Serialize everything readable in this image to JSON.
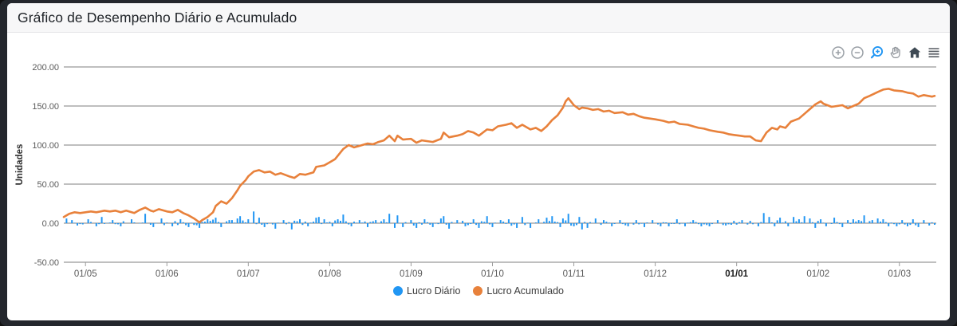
{
  "window": {
    "title": "Gráfico de Desempenho Diário e Acumulado"
  },
  "toolbar": {
    "buttons": [
      {
        "name": "zoom-in-icon",
        "color": "#9aa0a6",
        "active": false
      },
      {
        "name": "zoom-out-icon",
        "color": "#9aa0a6",
        "active": false
      },
      {
        "name": "zoom-select-icon",
        "color": "#2196F3",
        "active": true
      },
      {
        "name": "pan-hand-icon",
        "color": "#8d9298",
        "active": false
      },
      {
        "name": "home-reset-icon",
        "color": "#3e4a54",
        "active": false
      },
      {
        "name": "menu-icon",
        "color": "#565b62",
        "active": false
      }
    ]
  },
  "legend": {
    "items": [
      {
        "label": "Lucro Diário",
        "color": "#2196F3"
      },
      {
        "label": "Lucro Acumulado",
        "color": "#E8813B"
      }
    ]
  },
  "chart_data": {
    "type": "combo",
    "ylabel": "Unidades",
    "ylim": [
      -50,
      200
    ],
    "grid": true,
    "grid_color": "#7f7f7f",
    "legend_position": "bottom",
    "y_ticks": [
      {
        "value": 200,
        "label": "200.00"
      },
      {
        "value": 150,
        "label": "150.00"
      },
      {
        "value": 100,
        "label": "100.00"
      },
      {
        "value": 50,
        "label": "50.00"
      },
      {
        "value": 0,
        "label": "0.00"
      },
      {
        "value": -50,
        "label": "-50.00"
      }
    ],
    "x_ticks": [
      {
        "label": "01/05",
        "day": 8,
        "bold": false
      },
      {
        "label": "01/06",
        "day": 38,
        "bold": false
      },
      {
        "label": "01/07",
        "day": 68,
        "bold": false
      },
      {
        "label": "01/08",
        "day": 98,
        "bold": false
      },
      {
        "label": "01/09",
        "day": 128,
        "bold": false
      },
      {
        "label": "01/10",
        "day": 158,
        "bold": false
      },
      {
        "label": "01/11",
        "day": 188,
        "bold": false
      },
      {
        "label": "01/12",
        "day": 218,
        "bold": false
      },
      {
        "label": "01/01",
        "day": 248,
        "bold": true
      },
      {
        "label": "01/02",
        "day": 278,
        "bold": false
      },
      {
        "label": "01/03",
        "day": 308,
        "bold": false
      }
    ],
    "total_days": 321,
    "series": [
      {
        "name": "Lucro Diário",
        "type": "bar",
        "color": "#2196F3"
      },
      {
        "name": "Lucro Acumulado",
        "type": "line",
        "color": "#E8813B"
      }
    ],
    "cumulative_keypoints": [
      [
        0,
        8
      ],
      [
        2,
        12
      ],
      [
        4,
        14
      ],
      [
        6,
        13
      ],
      [
        8,
        14
      ],
      [
        10,
        15
      ],
      [
        12,
        14
      ],
      [
        15,
        16
      ],
      [
        17,
        15
      ],
      [
        19,
        16
      ],
      [
        21,
        14
      ],
      [
        23,
        16
      ],
      [
        26,
        13
      ],
      [
        28,
        17
      ],
      [
        30,
        20
      ],
      [
        32,
        16
      ],
      [
        33,
        15
      ],
      [
        35,
        18
      ],
      [
        38,
        15
      ],
      [
        40,
        14
      ],
      [
        42,
        17
      ],
      [
        44,
        13
      ],
      [
        46,
        10
      ],
      [
        48,
        6
      ],
      [
        50,
        1
      ],
      [
        51,
        4
      ],
      [
        53,
        8
      ],
      [
        55,
        14
      ],
      [
        56,
        22
      ],
      [
        58,
        28
      ],
      [
        60,
        25
      ],
      [
        62,
        32
      ],
      [
        64,
        42
      ],
      [
        65,
        48
      ],
      [
        67,
        55
      ],
      [
        68,
        60
      ],
      [
        70,
        66
      ],
      [
        72,
        68
      ],
      [
        74,
        65
      ],
      [
        76,
        66
      ],
      [
        78,
        62
      ],
      [
        80,
        64
      ],
      [
        83,
        60
      ],
      [
        85,
        58
      ],
      [
        87,
        63
      ],
      [
        89,
        62
      ],
      [
        92,
        65
      ],
      [
        93,
        72
      ],
      [
        96,
        74
      ],
      [
        98,
        78
      ],
      [
        100,
        82
      ],
      [
        103,
        95
      ],
      [
        105,
        100
      ],
      [
        107,
        97
      ],
      [
        109,
        99
      ],
      [
        112,
        102
      ],
      [
        114,
        101
      ],
      [
        116,
        104
      ],
      [
        118,
        106
      ],
      [
        120,
        112
      ],
      [
        122,
        105
      ],
      [
        123,
        112
      ],
      [
        125,
        107
      ],
      [
        128,
        108
      ],
      [
        130,
        103
      ],
      [
        132,
        106
      ],
      [
        134,
        105
      ],
      [
        136,
        104
      ],
      [
        139,
        108
      ],
      [
        140,
        116
      ],
      [
        142,
        110
      ],
      [
        145,
        112
      ],
      [
        147,
        114
      ],
      [
        149,
        118
      ],
      [
        151,
        116
      ],
      [
        153,
        112
      ],
      [
        156,
        120
      ],
      [
        158,
        119
      ],
      [
        160,
        124
      ],
      [
        163,
        126
      ],
      [
        165,
        128
      ],
      [
        167,
        122
      ],
      [
        169,
        126
      ],
      [
        172,
        120
      ],
      [
        174,
        122
      ],
      [
        176,
        118
      ],
      [
        178,
        124
      ],
      [
        180,
        132
      ],
      [
        182,
        138
      ],
      [
        184,
        148
      ],
      [
        185,
        156
      ],
      [
        186,
        160
      ],
      [
        188,
        151
      ],
      [
        190,
        146
      ],
      [
        191,
        148
      ],
      [
        193,
        147
      ],
      [
        195,
        145
      ],
      [
        197,
        146
      ],
      [
        199,
        143
      ],
      [
        201,
        144
      ],
      [
        203,
        141
      ],
      [
        206,
        142
      ],
      [
        208,
        139
      ],
      [
        210,
        140
      ],
      [
        212,
        137
      ],
      [
        214,
        135
      ],
      [
        216,
        134
      ],
      [
        218,
        133
      ],
      [
        221,
        131
      ],
      [
        223,
        129
      ],
      [
        225,
        130
      ],
      [
        227,
        127
      ],
      [
        230,
        126
      ],
      [
        232,
        124
      ],
      [
        234,
        122
      ],
      [
        236,
        121
      ],
      [
        238,
        119
      ],
      [
        241,
        117
      ],
      [
        243,
        116
      ],
      [
        245,
        114
      ],
      [
        247,
        113
      ],
      [
        249,
        112
      ],
      [
        251,
        111
      ],
      [
        253,
        111
      ],
      [
        255,
        106
      ],
      [
        257,
        105
      ],
      [
        259,
        116
      ],
      [
        261,
        122
      ],
      [
        263,
        120
      ],
      [
        264,
        124
      ],
      [
        266,
        122
      ],
      [
        268,
        130
      ],
      [
        271,
        134
      ],
      [
        273,
        140
      ],
      [
        275,
        146
      ],
      [
        277,
        152
      ],
      [
        279,
        156
      ],
      [
        280,
        153
      ],
      [
        283,
        149
      ],
      [
        285,
        150
      ],
      [
        287,
        151
      ],
      [
        289,
        147
      ],
      [
        291,
        150
      ],
      [
        293,
        153
      ],
      [
        295,
        160
      ],
      [
        297,
        163
      ],
      [
        300,
        168
      ],
      [
        302,
        171
      ],
      [
        304,
        172
      ],
      [
        306,
        170
      ],
      [
        309,
        169
      ],
      [
        311,
        167
      ],
      [
        313,
        166
      ],
      [
        315,
        162
      ],
      [
        317,
        164
      ],
      [
        320,
        162
      ],
      [
        321,
        163
      ]
    ],
    "daily_spikes": [
      [
        1,
        6
      ],
      [
        3,
        4
      ],
      [
        5,
        -3
      ],
      [
        9,
        5
      ],
      [
        12,
        -4
      ],
      [
        14,
        8
      ],
      [
        18,
        4
      ],
      [
        21,
        -4
      ],
      [
        25,
        5
      ],
      [
        30,
        12
      ],
      [
        33,
        -5
      ],
      [
        36,
        6
      ],
      [
        40,
        -4
      ],
      [
        43,
        5
      ],
      [
        46,
        -5
      ],
      [
        50,
        -6
      ],
      [
        53,
        5
      ],
      [
        56,
        7
      ],
      [
        58,
        -5
      ],
      [
        61,
        4
      ],
      [
        64,
        6
      ],
      [
        65,
        9
      ],
      [
        68,
        5
      ],
      [
        70,
        15
      ],
      [
        72,
        7
      ],
      [
        74,
        -5
      ],
      [
        78,
        -7
      ],
      [
        81,
        4
      ],
      [
        84,
        -8
      ],
      [
        87,
        5
      ],
      [
        90,
        -4
      ],
      [
        93,
        7
      ],
      [
        94,
        8
      ],
      [
        96,
        5
      ],
      [
        99,
        -4
      ],
      [
        101,
        5
      ],
      [
        103,
        11
      ],
      [
        106,
        -4
      ],
      [
        109,
        4
      ],
      [
        112,
        -5
      ],
      [
        115,
        4
      ],
      [
        118,
        5
      ],
      [
        120,
        12
      ],
      [
        122,
        -6
      ],
      [
        123,
        10
      ],
      [
        125,
        -5
      ],
      [
        128,
        4
      ],
      [
        130,
        -6
      ],
      [
        133,
        5
      ],
      [
        136,
        -5
      ],
      [
        139,
        6
      ],
      [
        140,
        9
      ],
      [
        142,
        -7
      ],
      [
        145,
        4
      ],
      [
        148,
        -4
      ],
      [
        151,
        5
      ],
      [
        153,
        -6
      ],
      [
        156,
        9
      ],
      [
        158,
        -5
      ],
      [
        161,
        4
      ],
      [
        164,
        5
      ],
      [
        167,
        -6
      ],
      [
        169,
        8
      ],
      [
        172,
        -6
      ],
      [
        175,
        5
      ],
      [
        178,
        7
      ],
      [
        180,
        9
      ],
      [
        183,
        -5
      ],
      [
        184,
        6
      ],
      [
        186,
        12
      ],
      [
        188,
        -4
      ],
      [
        190,
        8
      ],
      [
        191,
        -8
      ],
      [
        193,
        -6
      ],
      [
        196,
        6
      ],
      [
        199,
        4
      ],
      [
        202,
        -4
      ],
      [
        205,
        4
      ],
      [
        208,
        -4
      ],
      [
        211,
        4
      ],
      [
        214,
        -5
      ],
      [
        217,
        4
      ],
      [
        220,
        -4
      ],
      [
        223,
        -4
      ],
      [
        226,
        5
      ],
      [
        229,
        -4
      ],
      [
        232,
        4
      ],
      [
        235,
        -4
      ],
      [
        238,
        -4
      ],
      [
        241,
        4
      ],
      [
        244,
        -3
      ],
      [
        247,
        3
      ],
      [
        250,
        4
      ],
      [
        253,
        3
      ],
      [
        256,
        -4
      ],
      [
        258,
        13
      ],
      [
        260,
        8
      ],
      [
        262,
        -4
      ],
      [
        264,
        7
      ],
      [
        267,
        -4
      ],
      [
        269,
        8
      ],
      [
        271,
        5
      ],
      [
        273,
        9
      ],
      [
        275,
        6
      ],
      [
        277,
        -6
      ],
      [
        279,
        5
      ],
      [
        281,
        -4
      ],
      [
        284,
        7
      ],
      [
        287,
        -5
      ],
      [
        289,
        4
      ],
      [
        291,
        5
      ],
      [
        293,
        4
      ],
      [
        295,
        10
      ],
      [
        298,
        4
      ],
      [
        300,
        6
      ],
      [
        302,
        5
      ],
      [
        304,
        -4
      ],
      [
        307,
        -4
      ],
      [
        309,
        4
      ],
      [
        311,
        -4
      ],
      [
        313,
        5
      ],
      [
        315,
        -5
      ],
      [
        317,
        4
      ],
      [
        319,
        -3
      ],
      [
        321,
        -2
      ]
    ],
    "daily_noise": {
      "seed": 13,
      "amplitude": 2.0
    }
  }
}
